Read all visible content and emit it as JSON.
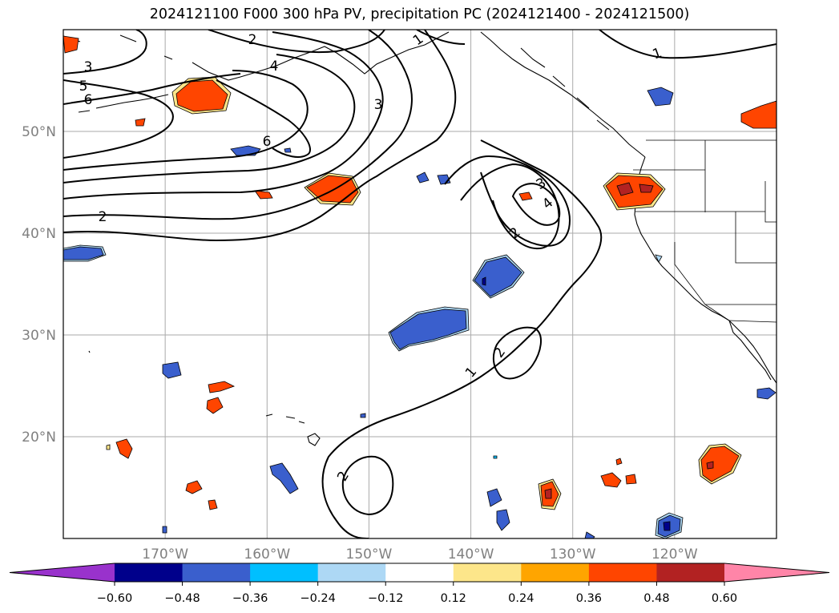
{
  "title": "2024121100 F000 300 hPa PV, precipitation PC (2024121400 - 2024121500)",
  "map": {
    "projection": "PlateCarree",
    "lon_range": [
      -180,
      -110
    ],
    "lat_range": [
      10,
      60
    ],
    "lon_ticks": [
      {
        "value": -170,
        "label": "170°W"
      },
      {
        "value": -160,
        "label": "160°W"
      },
      {
        "value": -150,
        "label": "150°W"
      },
      {
        "value": -140,
        "label": "140°W"
      },
      {
        "value": -130,
        "label": "130°W"
      },
      {
        "value": -120,
        "label": "120°W"
      }
    ],
    "lat_ticks": [
      {
        "value": 50,
        "label": "50°N"
      },
      {
        "value": 40,
        "label": "40°N"
      },
      {
        "value": 30,
        "label": "30°N"
      },
      {
        "value": 20,
        "label": "20°N"
      }
    ],
    "grid": true,
    "contour_field": "300 hPa PV",
    "contour_labels": [
      "1",
      "2",
      "3",
      "4",
      "5",
      "6"
    ],
    "shading_field": "precipitation PC"
  },
  "colorbar": {
    "orientation": "horizontal",
    "extend": "both",
    "bounds": [
      -0.6,
      -0.48,
      -0.36,
      -0.24,
      -0.12,
      0.12,
      0.24,
      0.36,
      0.48,
      0.6
    ],
    "tick_labels": [
      "−0.60",
      "−0.48",
      "−0.36",
      "−0.24",
      "−0.12",
      "0.12",
      "0.24",
      "0.36",
      "0.48",
      "0.60"
    ],
    "colors": [
      "#9932cc",
      "#00008b",
      "#3a5fcd",
      "#00bfff",
      "#add8f5",
      "#ffffff",
      "#fde68a",
      "#ffa500",
      "#ff4500",
      "#b22222",
      "#ff85a8"
    ]
  }
}
